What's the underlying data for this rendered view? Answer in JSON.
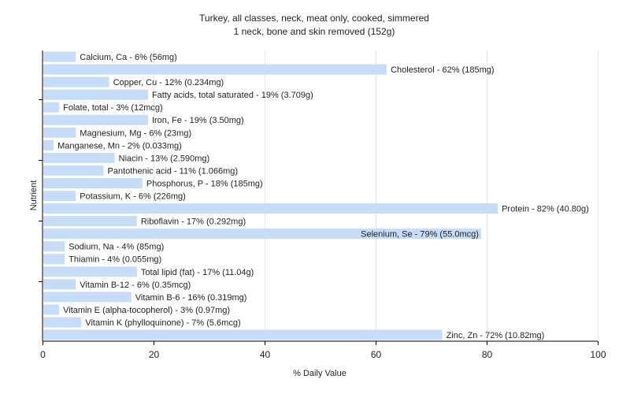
{
  "chart_data": {
    "type": "bar",
    "orientation": "horizontal",
    "title": "Turkey, all classes, neck, meat only, cooked, simmered",
    "subtitle": "1 neck, bone and skin removed (152g)",
    "xlabel": "% Daily Value",
    "ylabel": "Nutrient",
    "xlim": [
      0,
      100
    ],
    "xticks": [
      "0",
      "20",
      "40",
      "60",
      "80",
      "100"
    ],
    "grid": true,
    "bar_color": "#c6dcf7",
    "bars": [
      {
        "label": "Calcium, Ca - 6% (56mg)",
        "value": 6
      },
      {
        "label": "Cholesterol - 62% (185mg)",
        "value": 62
      },
      {
        "label": "Copper, Cu - 12% (0.234mg)",
        "value": 12
      },
      {
        "label": "Fatty acids, total saturated - 19% (3.709g)",
        "value": 19
      },
      {
        "label": "Folate, total - 3% (12mcg)",
        "value": 3
      },
      {
        "label": "Iron, Fe - 19% (3.50mg)",
        "value": 19
      },
      {
        "label": "Magnesium, Mg - 6% (23mg)",
        "value": 6
      },
      {
        "label": "Manganese, Mn - 2% (0.033mg)",
        "value": 2
      },
      {
        "label": "Niacin - 13% (2.590mg)",
        "value": 13
      },
      {
        "label": "Pantothenic acid - 11% (1.066mg)",
        "value": 11
      },
      {
        "label": "Phosphorus, P - 18% (185mg)",
        "value": 18
      },
      {
        "label": "Potassium, K - 6% (226mg)",
        "value": 6
      },
      {
        "label": "Protein - 82% (40.80g)",
        "value": 82
      },
      {
        "label": "Riboflavin - 17% (0.292mg)",
        "value": 17
      },
      {
        "label": "Selenium, Se - 79% (55.0mcg)",
        "value": 79
      },
      {
        "label": "Sodium, Na - 4% (85mg)",
        "value": 4
      },
      {
        "label": "Thiamin - 4% (0.055mg)",
        "value": 4
      },
      {
        "label": "Total lipid (fat) - 17% (11.04g)",
        "value": 17
      },
      {
        "label": "Vitamin B-12 - 6% (0.35mcg)",
        "value": 6
      },
      {
        "label": "Vitamin B-6 - 16% (0.319mg)",
        "value": 16
      },
      {
        "label": "Vitamin E (alpha-tocopherol) - 3% (0.97mg)",
        "value": 3
      },
      {
        "label": "Vitamin K (phylloquinone) - 7% (5.6mcg)",
        "value": 7
      },
      {
        "label": "Zinc, Zn - 72% (10.82mg)",
        "value": 72
      }
    ]
  }
}
